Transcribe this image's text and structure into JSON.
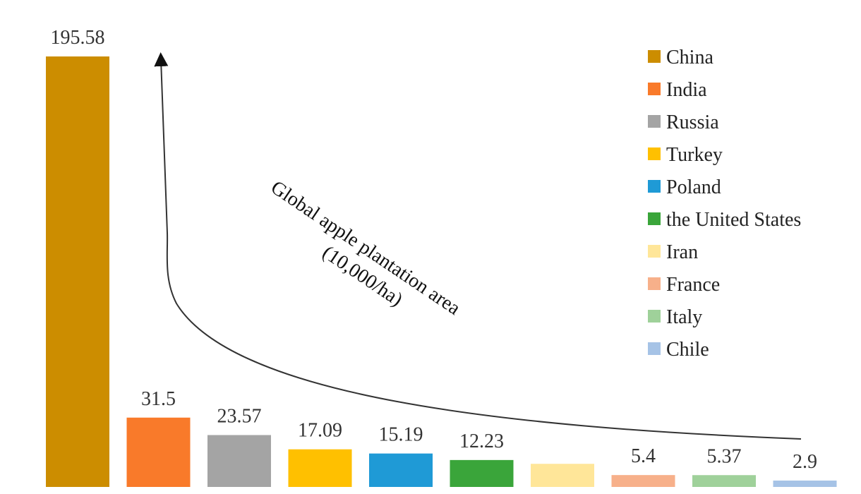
{
  "chart_data": {
    "type": "bar",
    "categories": [
      "China",
      "India",
      "Russia",
      "Turkey",
      "Poland",
      "the United States",
      "Iran",
      "France",
      "Italy",
      "Chile"
    ],
    "values": [
      195.58,
      31.5,
      23.57,
      17.09,
      15.19,
      12.23,
      10.5,
      5.4,
      5.37,
      2.9
    ],
    "data_labels": [
      "195.58",
      "31.5",
      "23.57",
      "17.09",
      "15.19",
      "12.23",
      "",
      "5.4",
      "5.37",
      "2.9"
    ],
    "colors": [
      "#cc8d00",
      "#f97a2a",
      "#a4a4a4",
      "#ffc000",
      "#1f9ad6",
      "#3aa53a",
      "#ffe699",
      "#f7b08a",
      "#9fd19a",
      "#a6c3e6"
    ],
    "legend": {
      "placement": "top-right",
      "entries": [
        "China",
        "India",
        "Russia",
        "Turkey",
        "Poland",
        "the United States",
        "Iran",
        "France",
        "Italy",
        "Chile"
      ]
    },
    "annotation": {
      "line1": "Global apple plantation area",
      "line2": "(10,000/ha)"
    },
    "ylim": [
      0,
      195.58
    ],
    "grid": false
  }
}
